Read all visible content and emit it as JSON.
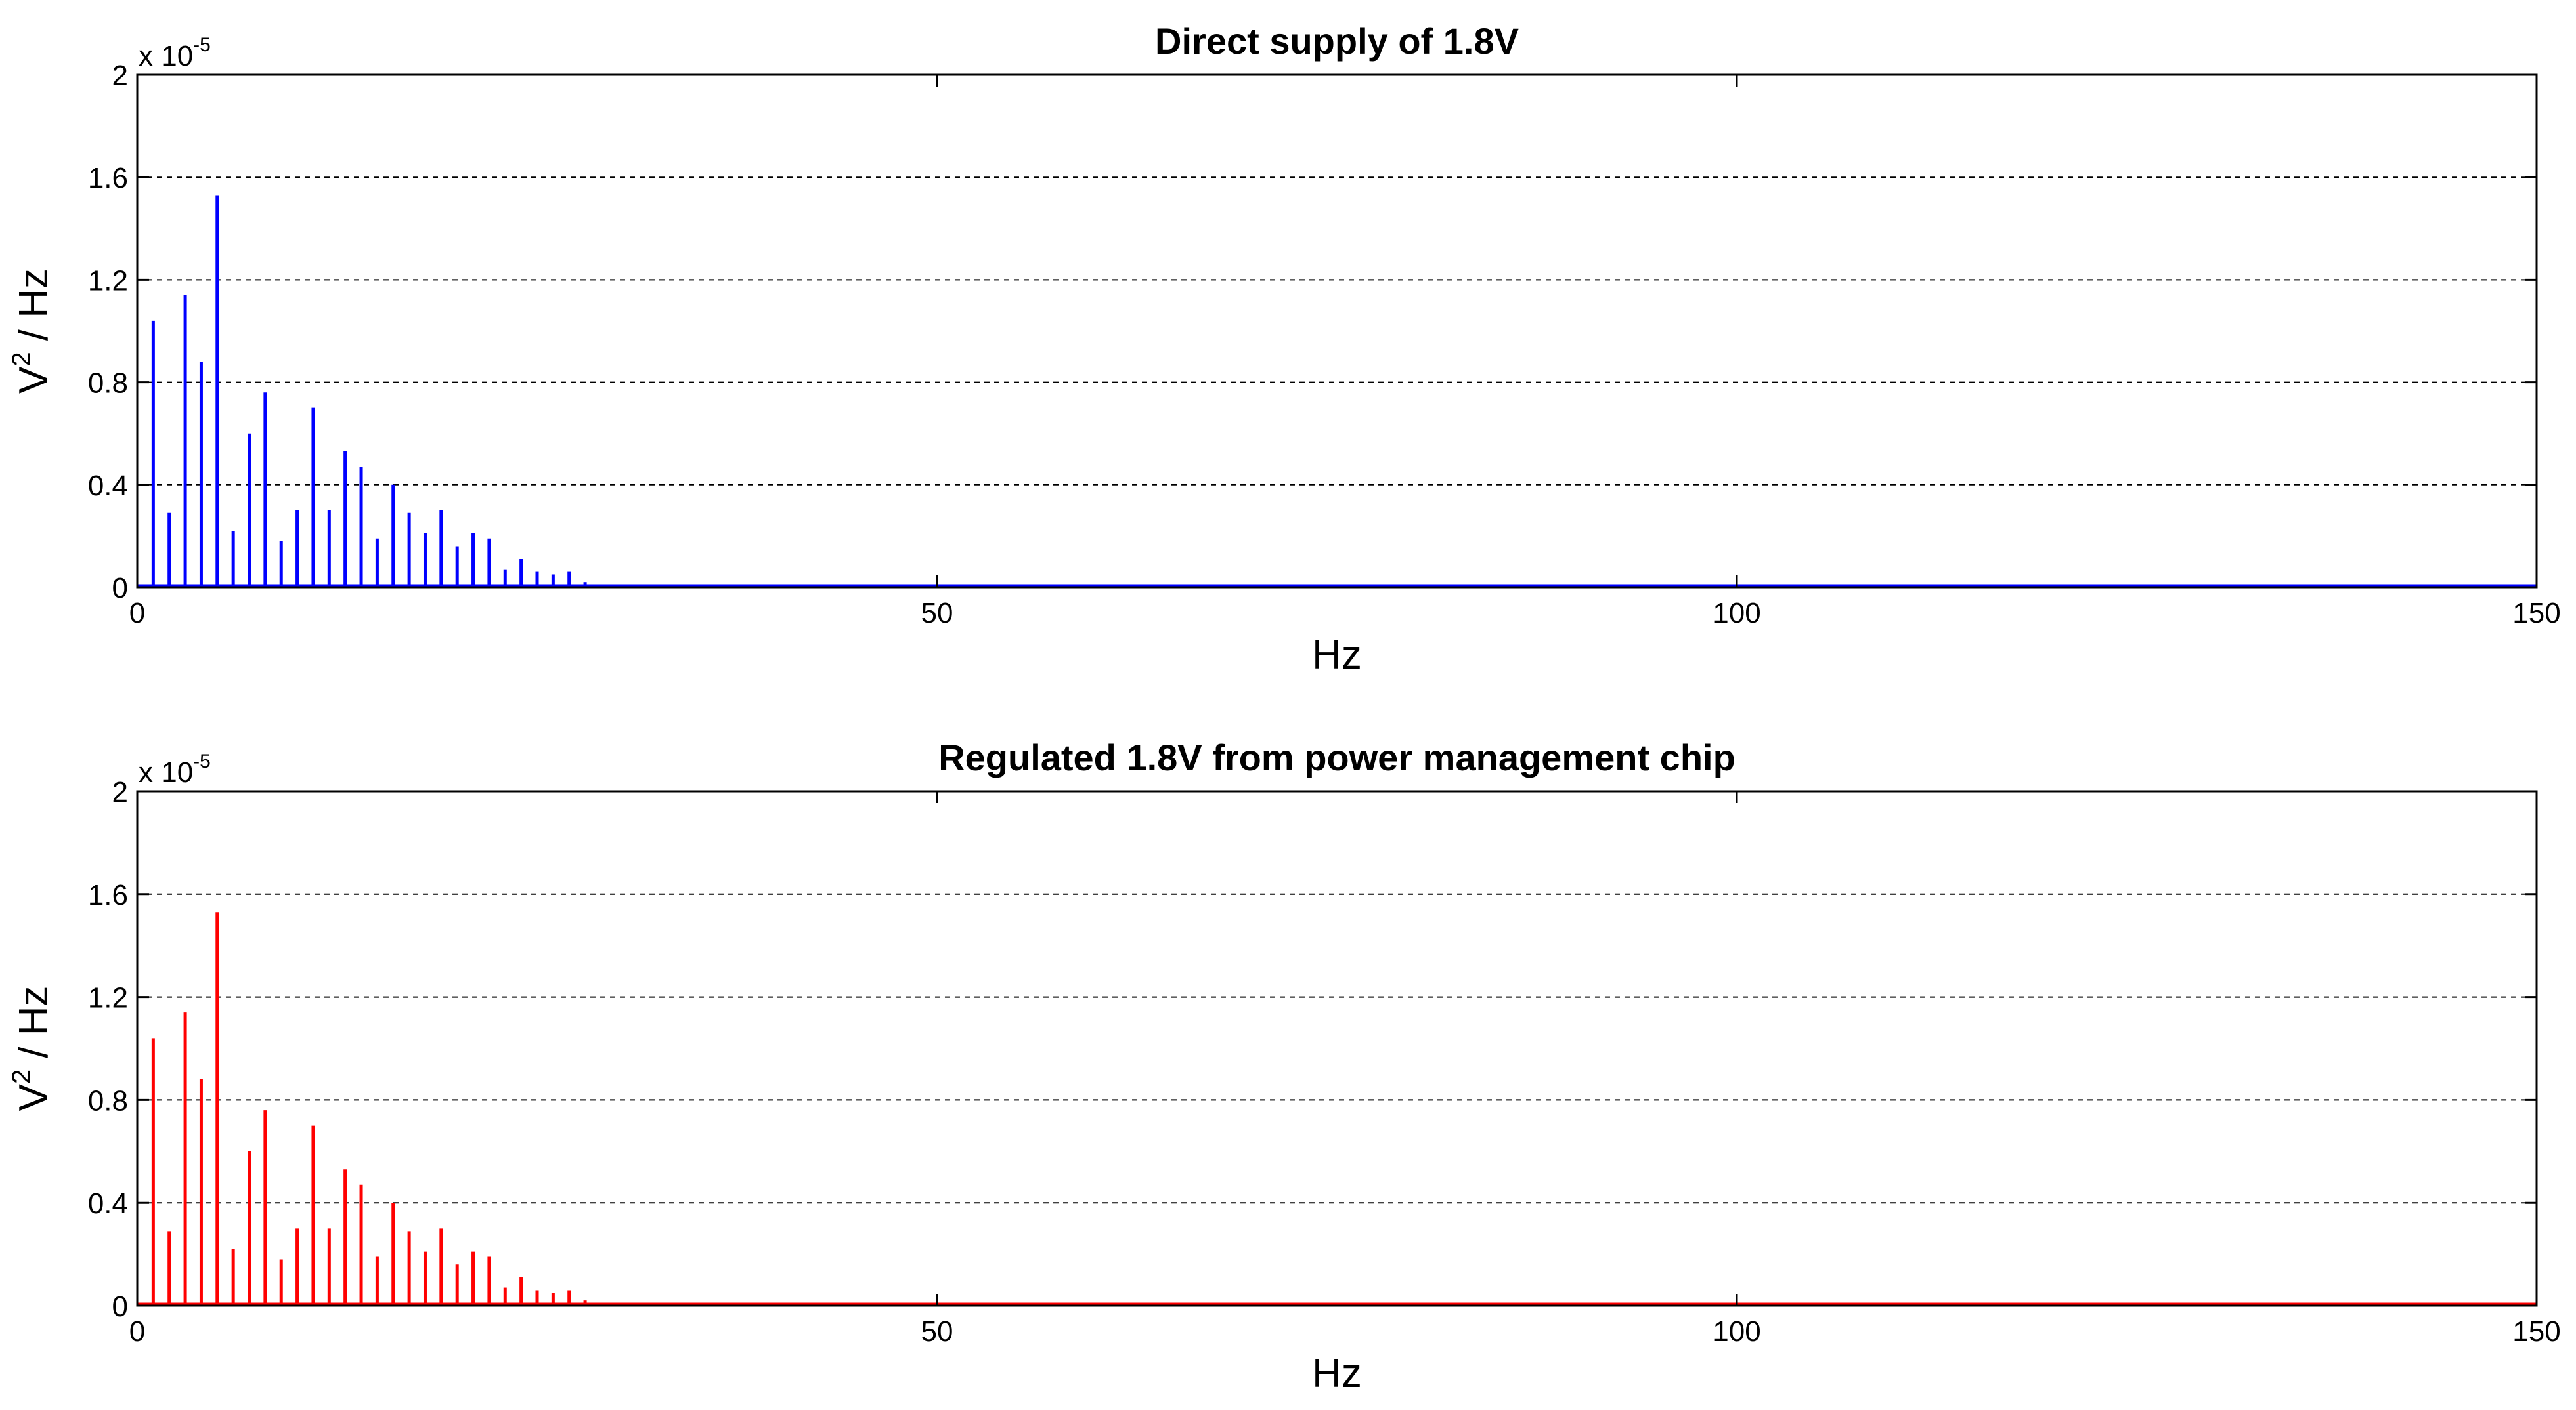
{
  "chart_data": [
    {
      "type": "bar",
      "title": "Direct supply of 1.8V",
      "xlabel": "Hz",
      "ylabel_base": "V",
      "ylabel_exp": "2",
      "ylabel_rest": " / Hz",
      "y_multiplier_base": "x 10",
      "y_multiplier_exp": "-5",
      "xlim": [
        0,
        150
      ],
      "ylim": [
        0,
        2
      ],
      "x_ticks": [
        0,
        50,
        100,
        150
      ],
      "x_tick_labels": [
        "0",
        "50",
        "100",
        "150"
      ],
      "y_ticks": [
        0,
        0.4,
        0.8,
        1.2,
        1.6,
        2
      ],
      "y_tick_labels": [
        "0",
        "0.4",
        "0.8",
        "1.2",
        "1.6",
        "2"
      ],
      "grid": "y-dashed",
      "color": "#0000ff",
      "x": [
        1,
        2,
        3,
        4,
        5,
        6,
        7,
        8,
        9,
        10,
        11,
        12,
        13,
        14,
        15,
        16,
        17,
        18,
        19,
        20,
        21,
        22,
        23,
        24,
        25,
        26,
        27,
        28,
        29
      ],
      "values": [
        1.04,
        0.29,
        1.14,
        0.88,
        1.53,
        0.22,
        0.6,
        0.76,
        0.18,
        0.3,
        0.7,
        0.3,
        0.53,
        0.47,
        0.19,
        0.4,
        0.29,
        0.21,
        0.3,
        0.16,
        0.21,
        0.19,
        0.07,
        0.11,
        0.06,
        0.05,
        0.06,
        0.02,
        0.01
      ]
    },
    {
      "type": "bar",
      "title": "Regulated 1.8V from power management chip",
      "xlabel": "Hz",
      "ylabel_base": "V",
      "ylabel_exp": "2",
      "ylabel_rest": " / Hz",
      "y_multiplier_base": "x 10",
      "y_multiplier_exp": "-5",
      "xlim": [
        0,
        150
      ],
      "ylim": [
        0,
        2
      ],
      "x_ticks": [
        0,
        50,
        100,
        150
      ],
      "x_tick_labels": [
        "0",
        "50",
        "100",
        "150"
      ],
      "y_ticks": [
        0,
        0.4,
        0.8,
        1.2,
        1.6,
        2
      ],
      "y_tick_labels": [
        "0",
        "0.4",
        "0.8",
        "1.2",
        "1.6",
        "2"
      ],
      "grid": "y-dashed",
      "color": "#ff0000",
      "x": [
        1,
        2,
        3,
        4,
        5,
        6,
        7,
        8,
        9,
        10,
        11,
        12,
        13,
        14,
        15,
        16,
        17,
        18,
        19,
        20,
        21,
        22,
        23,
        24,
        25,
        26,
        27,
        28,
        29
      ],
      "values": [
        1.04,
        0.29,
        1.14,
        0.88,
        1.53,
        0.22,
        0.6,
        0.76,
        0.18,
        0.3,
        0.7,
        0.3,
        0.53,
        0.47,
        0.19,
        0.4,
        0.29,
        0.21,
        0.3,
        0.16,
        0.21,
        0.19,
        0.07,
        0.11,
        0.06,
        0.05,
        0.06,
        0.02,
        0.01
      ]
    }
  ]
}
